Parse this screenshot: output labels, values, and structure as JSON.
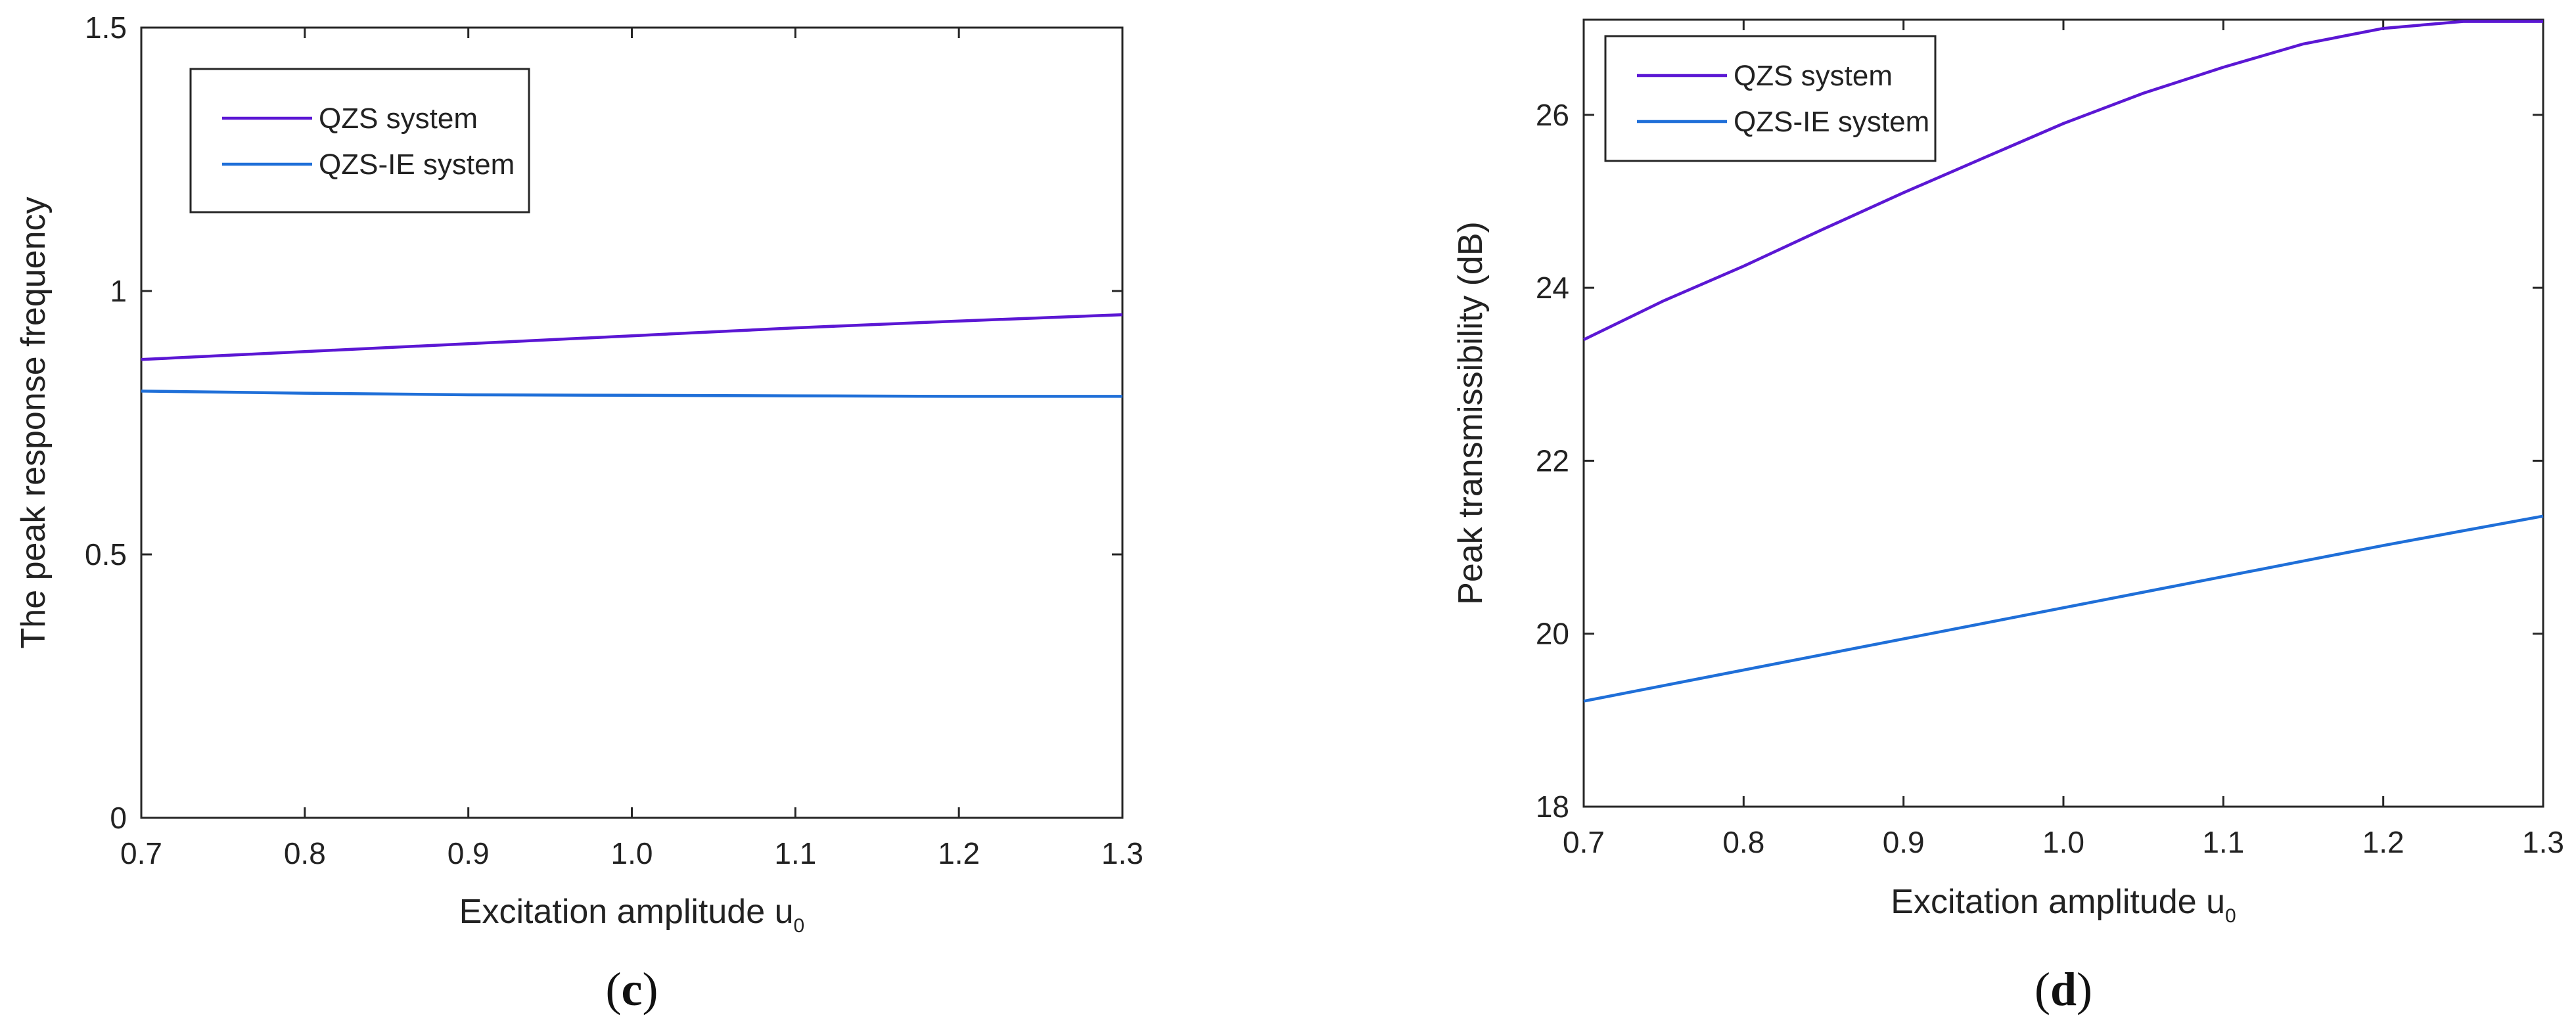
{
  "chart_data": [
    {
      "type": "line",
      "panel_label": "c",
      "title": "",
      "xlabel": "Excitation amplitude u",
      "xlabel_subscript": "0",
      "ylabel": "The peak response frequency",
      "xlim": [
        0.7,
        1.3
      ],
      "ylim": [
        0,
        1.5
      ],
      "x_ticks": [
        "0.7",
        "0.8",
        "0.9",
        "1.0",
        "1.1",
        "1.2",
        "1.3"
      ],
      "y_ticks": [
        "0",
        "0.5",
        "1",
        "1.5"
      ],
      "grid": false,
      "legend_position": "top-left",
      "x": [
        0.7,
        0.8,
        0.9,
        1.0,
        1.1,
        1.2,
        1.3
      ],
      "series": [
        {
          "name": "QZS system",
          "color": "#5b17d4",
          "values": [
            0.87,
            0.885,
            0.9,
            0.915,
            0.93,
            0.943,
            0.955
          ]
        },
        {
          "name": "QZS-IE system",
          "color": "#1f6fd8",
          "values": [
            0.81,
            0.806,
            0.803,
            0.802,
            0.801,
            0.8,
            0.8
          ]
        }
      ]
    },
    {
      "type": "line",
      "panel_label": "d",
      "title": "",
      "xlabel": "Excitation amplitude u",
      "xlabel_subscript": "0",
      "ylabel": "Peak  transmissibility (dB)",
      "xlim": [
        0.7,
        1.3
      ],
      "ylim": [
        18,
        27.1
      ],
      "x_ticks": [
        "0.7",
        "0.8",
        "0.9",
        "1.0",
        "1.1",
        "1.2",
        "1.3"
      ],
      "y_ticks": [
        "18",
        "20",
        "22",
        "24",
        "26"
      ],
      "grid": false,
      "legend_position": "top-left",
      "x": [
        0.7,
        0.75,
        0.8,
        0.85,
        0.9,
        0.95,
        1.0,
        1.05,
        1.1,
        1.15,
        1.2,
        1.25,
        1.3
      ],
      "series": [
        {
          "name": "QZS system",
          "color": "#5b17d4",
          "values": [
            23.4,
            23.85,
            24.25,
            24.68,
            25.1,
            25.5,
            25.9,
            26.25,
            26.55,
            26.82,
            27.0,
            27.08,
            27.08
          ]
        },
        {
          "name": "QZS-IE system",
          "color": "#1f6fd8",
          "values": [
            19.22,
            19.4,
            19.58,
            19.76,
            19.94,
            20.12,
            20.3,
            20.48,
            20.66,
            20.84,
            21.02,
            21.19,
            21.36
          ]
        }
      ]
    }
  ]
}
